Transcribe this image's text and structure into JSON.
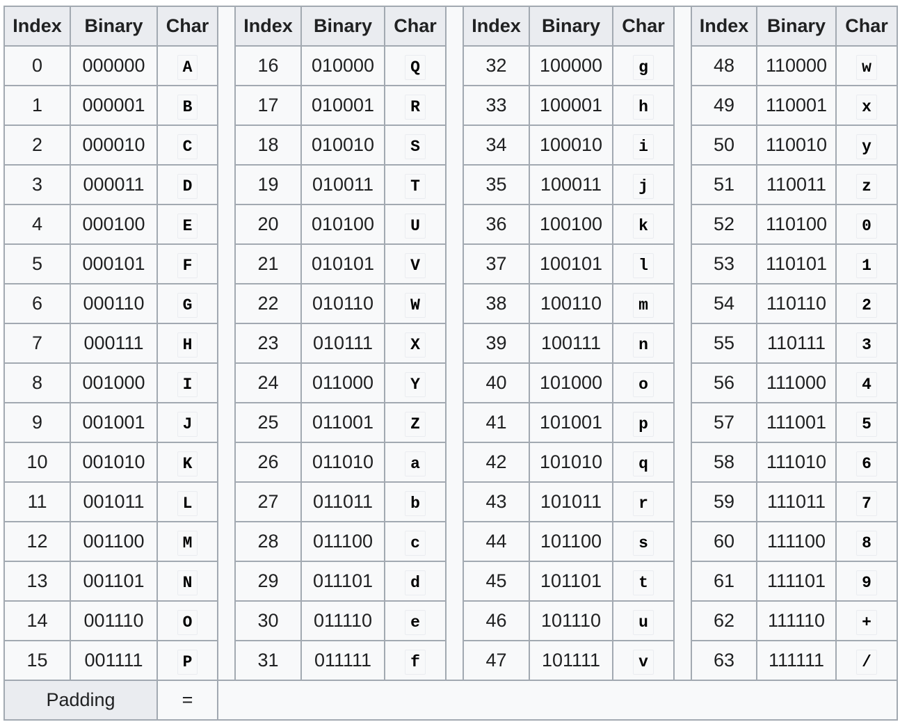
{
  "headers": [
    "Index",
    "Binary",
    "Char"
  ],
  "groups": [
    [
      [
        "0",
        "000000",
        "A"
      ],
      [
        "1",
        "000001",
        "B"
      ],
      [
        "2",
        "000010",
        "C"
      ],
      [
        "3",
        "000011",
        "D"
      ],
      [
        "4",
        "000100",
        "E"
      ],
      [
        "5",
        "000101",
        "F"
      ],
      [
        "6",
        "000110",
        "G"
      ],
      [
        "7",
        "000111",
        "H"
      ],
      [
        "8",
        "001000",
        "I"
      ],
      [
        "9",
        "001001",
        "J"
      ],
      [
        "10",
        "001010",
        "K"
      ],
      [
        "11",
        "001011",
        "L"
      ],
      [
        "12",
        "001100",
        "M"
      ],
      [
        "13",
        "001101",
        "N"
      ],
      [
        "14",
        "001110",
        "O"
      ],
      [
        "15",
        "001111",
        "P"
      ]
    ],
    [
      [
        "16",
        "010000",
        "Q"
      ],
      [
        "17",
        "010001",
        "R"
      ],
      [
        "18",
        "010010",
        "S"
      ],
      [
        "19",
        "010011",
        "T"
      ],
      [
        "20",
        "010100",
        "U"
      ],
      [
        "21",
        "010101",
        "V"
      ],
      [
        "22",
        "010110",
        "W"
      ],
      [
        "23",
        "010111",
        "X"
      ],
      [
        "24",
        "011000",
        "Y"
      ],
      [
        "25",
        "011001",
        "Z"
      ],
      [
        "26",
        "011010",
        "a"
      ],
      [
        "27",
        "011011",
        "b"
      ],
      [
        "28",
        "011100",
        "c"
      ],
      [
        "29",
        "011101",
        "d"
      ],
      [
        "30",
        "011110",
        "e"
      ],
      [
        "31",
        "011111",
        "f"
      ]
    ],
    [
      [
        "32",
        "100000",
        "g"
      ],
      [
        "33",
        "100001",
        "h"
      ],
      [
        "34",
        "100010",
        "i"
      ],
      [
        "35",
        "100011",
        "j"
      ],
      [
        "36",
        "100100",
        "k"
      ],
      [
        "37",
        "100101",
        "l"
      ],
      [
        "38",
        "100110",
        "m"
      ],
      [
        "39",
        "100111",
        "n"
      ],
      [
        "40",
        "101000",
        "o"
      ],
      [
        "41",
        "101001",
        "p"
      ],
      [
        "42",
        "101010",
        "q"
      ],
      [
        "43",
        "101011",
        "r"
      ],
      [
        "44",
        "101100",
        "s"
      ],
      [
        "45",
        "101101",
        "t"
      ],
      [
        "46",
        "101110",
        "u"
      ],
      [
        "47",
        "101111",
        "v"
      ]
    ],
    [
      [
        "48",
        "110000",
        "w"
      ],
      [
        "49",
        "110001",
        "x"
      ],
      [
        "50",
        "110010",
        "y"
      ],
      [
        "51",
        "110011",
        "z"
      ],
      [
        "52",
        "110100",
        "0"
      ],
      [
        "53",
        "110101",
        "1"
      ],
      [
        "54",
        "110110",
        "2"
      ],
      [
        "55",
        "110111",
        "3"
      ],
      [
        "56",
        "111000",
        "4"
      ],
      [
        "57",
        "111001",
        "5"
      ],
      [
        "58",
        "111010",
        "6"
      ],
      [
        "59",
        "111011",
        "7"
      ],
      [
        "60",
        "111100",
        "8"
      ],
      [
        "61",
        "111101",
        "9"
      ],
      [
        "62",
        "111110",
        "+"
      ],
      [
        "63",
        "111111",
        "/"
      ]
    ]
  ],
  "padding": {
    "label": "Padding",
    "char": "="
  }
}
